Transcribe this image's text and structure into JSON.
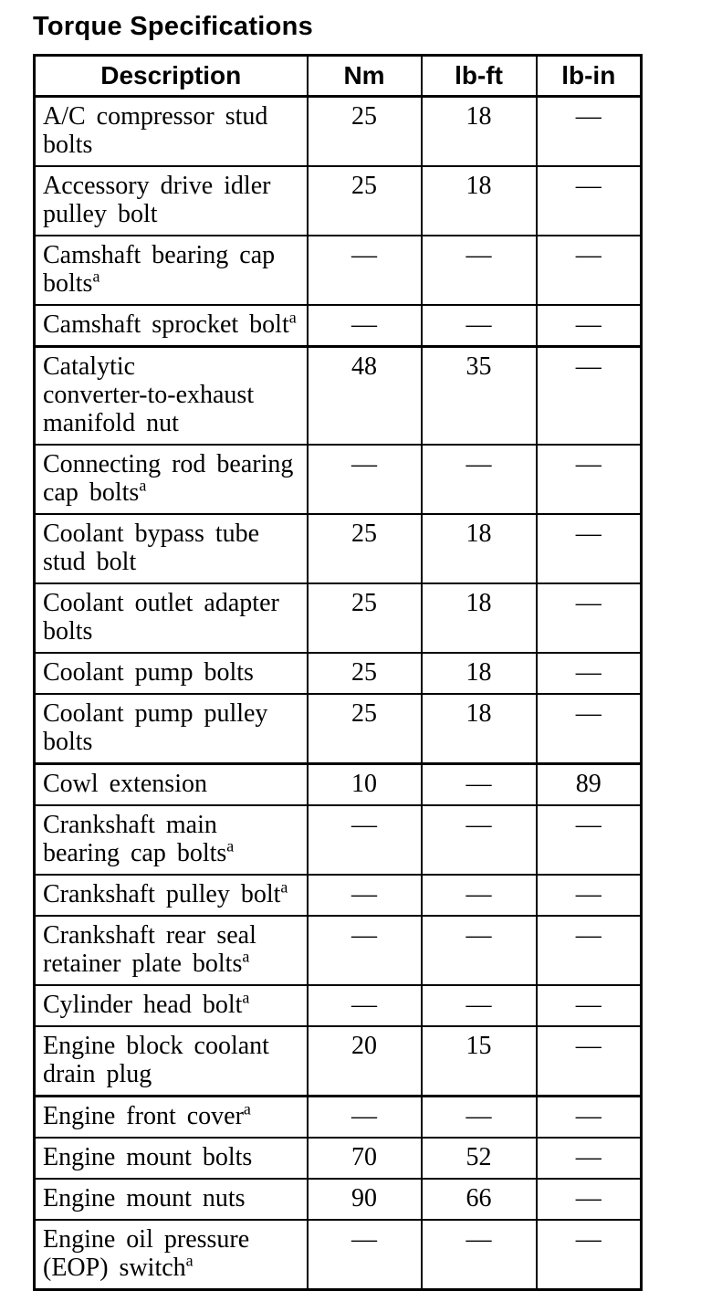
{
  "page": {
    "title": "Torque Specifications"
  },
  "table": {
    "headers": {
      "description": "Description",
      "nm": "Nm",
      "lb_ft": "lb-ft",
      "lb_in": "lb-in"
    },
    "rows": [
      {
        "description": "A/C compressor stud\nbolts",
        "sup": "",
        "nm": "25",
        "lb_ft": "18",
        "lb_in": "—"
      },
      {
        "description": "Accessory drive idler\npulley bolt",
        "sup": "",
        "nm": "25",
        "lb_ft": "18",
        "lb_in": "—"
      },
      {
        "description": "Camshaft bearing cap\nbolts",
        "sup": "a",
        "nm": "—",
        "lb_ft": "—",
        "lb_in": "—"
      },
      {
        "description": "Camshaft sprocket bolt",
        "sup": "a",
        "nm": "—",
        "lb_ft": "—",
        "lb_in": "—"
      },
      {
        "description": "Catalytic\nconverter-to-exhaust\nmanifold nut",
        "sup": "",
        "nm": "48",
        "lb_ft": "35",
        "lb_in": "—"
      },
      {
        "description": "Connecting rod bearing\ncap bolts",
        "sup": "a",
        "nm": "—",
        "lb_ft": "—",
        "lb_in": "—"
      },
      {
        "description": "Coolant bypass tube\nstud bolt",
        "sup": "",
        "nm": "25",
        "lb_ft": "18",
        "lb_in": "—"
      },
      {
        "description": "Coolant outlet adapter\nbolts",
        "sup": "",
        "nm": "25",
        "lb_ft": "18",
        "lb_in": "—"
      },
      {
        "description": "Coolant pump bolts",
        "sup": "",
        "nm": "25",
        "lb_ft": "18",
        "lb_in": "—"
      },
      {
        "description": "Coolant pump pulley\nbolts",
        "sup": "",
        "nm": "25",
        "lb_ft": "18",
        "lb_in": "—"
      },
      {
        "description": "Cowl extension",
        "sup": "",
        "nm": "10",
        "lb_ft": "—",
        "lb_in": "89"
      },
      {
        "description": "Crankshaft main\nbearing cap bolts",
        "sup": "a",
        "nm": "—",
        "lb_ft": "—",
        "lb_in": "—"
      },
      {
        "description": "Crankshaft pulley bolt",
        "sup": "a",
        "nm": "—",
        "lb_ft": "—",
        "lb_in": "—"
      },
      {
        "description": "Crankshaft rear seal\nretainer plate bolts",
        "sup": "a",
        "nm": "—",
        "lb_ft": "—",
        "lb_in": "—"
      },
      {
        "description": "Cylinder head bolt",
        "sup": "a",
        "nm": "—",
        "lb_ft": "—",
        "lb_in": "—"
      },
      {
        "description": "Engine block coolant\ndrain plug",
        "sup": "",
        "nm": "20",
        "lb_ft": "15",
        "lb_in": "—"
      },
      {
        "description": "Engine front cover",
        "sup": "a",
        "nm": "—",
        "lb_ft": "—",
        "lb_in": "—"
      },
      {
        "description": "Engine mount bolts",
        "sup": "",
        "nm": "70",
        "lb_ft": "52",
        "lb_in": "—"
      },
      {
        "description": "Engine mount nuts",
        "sup": "",
        "nm": "90",
        "lb_ft": "66",
        "lb_in": "—"
      },
      {
        "description": "Engine oil pressure\n(EOP) switch",
        "sup": "a",
        "nm": "—",
        "lb_ft": "—",
        "lb_in": "—"
      }
    ]
  }
}
